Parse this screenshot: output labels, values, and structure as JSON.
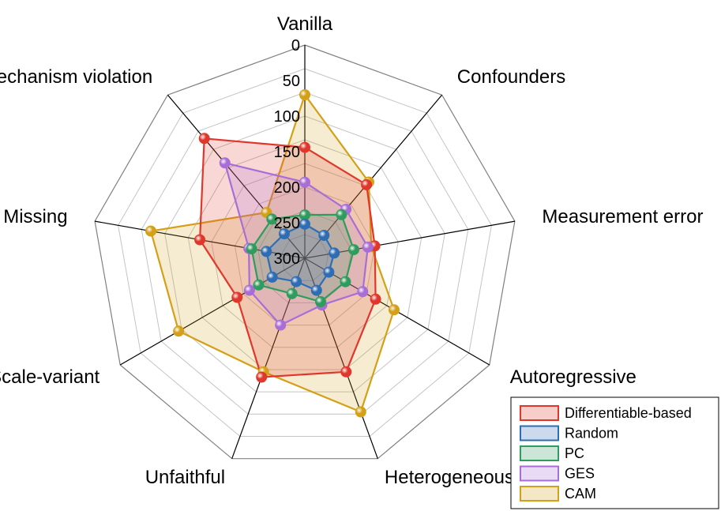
{
  "chart_data": {
    "type": "radar",
    "axes": [
      "Vanilla",
      "Confounders",
      "Measurement error",
      "Autoregressive",
      "Heterogeneous",
      "Unfaithful",
      "Scale-variant",
      "Missing",
      "Mechanism violation"
    ],
    "radial_ticks": [
      "0",
      "50",
      "100",
      "150",
      "200",
      "250",
      "300"
    ],
    "radial_range": [
      0,
      300
    ],
    "reversed_radial": true,
    "grid": true,
    "legend_position": "bottom-right",
    "series": [
      {
        "name": "Differentiable-based",
        "color": "#e0372c",
        "values": [
          144,
          165,
          200,
          185,
          130,
          122,
          190,
          150,
          80
        ]
      },
      {
        "name": "Random",
        "color": "#2e6db4",
        "values": [
          252,
          258,
          258,
          261,
          252,
          265,
          247,
          245,
          255
        ]
      },
      {
        "name": "PC",
        "color": "#2e9c5c",
        "values": [
          239,
          220,
          230,
          234,
          235,
          247,
          225,
          224,
          228
        ]
      },
      {
        "name": "GES",
        "color": "#a86ed6",
        "values": [
          193,
          210,
          210,
          206,
          230,
          200,
          210,
          220,
          125
        ]
      },
      {
        "name": "CAM",
        "color": "#d4a017",
        "values": [
          70,
          160,
          205,
          155,
          70,
          130,
          95,
          80,
          216
        ]
      }
    ]
  }
}
